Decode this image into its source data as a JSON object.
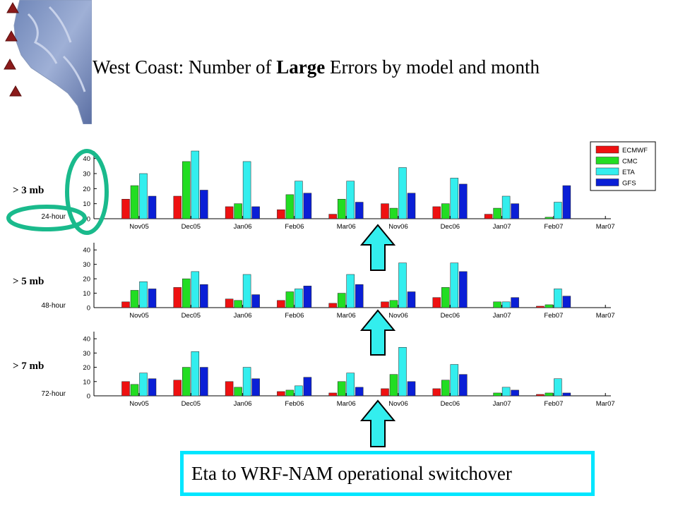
{
  "title": {
    "prefix": "West Coast: Number of ",
    "bold": "Large",
    "suffix": " Errors by model and month"
  },
  "callout": "Eta to WRF-NAM operational switchover",
  "colors": {
    "ECMWF": "#ee1111",
    "CMC": "#22dd22",
    "ETA": "#33eeee",
    "GFS": "#0a1fd6",
    "highlight": "#1aba8c",
    "arrow": "#33eeee"
  },
  "chart_data": [
    {
      "type": "bar",
      "threshold_label": "> 3 mb",
      "lead_label": "24-hour",
      "categories": [
        "Nov05",
        "Dec05",
        "Jan06",
        "Feb06",
        "Mar06",
        "Nov06",
        "Dec06",
        "Jan07",
        "Feb07",
        "Mar07"
      ],
      "ylim": [
        0,
        45
      ],
      "yticks": [
        "0",
        "10",
        "20",
        "30",
        "40"
      ],
      "legend": [
        "ECMWF",
        "CMC",
        "ETA",
        "GFS"
      ],
      "legend_position": "top-right",
      "series": [
        {
          "name": "ECMWF",
          "values": [
            13,
            15,
            8,
            6,
            3,
            10,
            8,
            3,
            0,
            null
          ]
        },
        {
          "name": "CMC",
          "values": [
            22,
            38,
            10,
            16,
            13,
            7,
            10,
            7,
            1,
            null
          ]
        },
        {
          "name": "ETA",
          "values": [
            30,
            45,
            38,
            25,
            25,
            34,
            27,
            15,
            11,
            null
          ]
        },
        {
          "name": "GFS",
          "values": [
            15,
            19,
            8,
            17,
            11,
            17,
            23,
            10,
            22,
            null
          ]
        }
      ]
    },
    {
      "type": "bar",
      "threshold_label": "> 5 mb",
      "lead_label": "48-hour",
      "categories": [
        "Nov05",
        "Dec05",
        "Jan06",
        "Feb06",
        "Mar06",
        "Nov06",
        "Dec06",
        "Jan07",
        "Feb07",
        "Mar07"
      ],
      "ylim": [
        0,
        45
      ],
      "yticks": [
        "0",
        "10",
        "20",
        "30",
        "40"
      ],
      "series": [
        {
          "name": "ECMWF",
          "values": [
            4,
            14,
            6,
            5,
            3,
            4,
            7,
            0,
            1,
            null
          ]
        },
        {
          "name": "CMC",
          "values": [
            12,
            20,
            5,
            11,
            10,
            5,
            14,
            4,
            2,
            null
          ]
        },
        {
          "name": "ETA",
          "values": [
            18,
            25,
            23,
            13,
            23,
            31,
            31,
            4,
            13,
            null
          ]
        },
        {
          "name": "GFS",
          "values": [
            13,
            16,
            9,
            15,
            16,
            11,
            25,
            7,
            8,
            null
          ]
        }
      ]
    },
    {
      "type": "bar",
      "threshold_label": "> 7 mb",
      "lead_label": "72-hour",
      "categories": [
        "Nov05",
        "Dec05",
        "Jan06",
        "Feb06",
        "Mar06",
        "Nov06",
        "Dec06",
        "Jan07",
        "Feb07",
        "Mar07"
      ],
      "ylim": [
        0,
        45
      ],
      "yticks": [
        "0",
        "10",
        "20",
        "30",
        "40"
      ],
      "series": [
        {
          "name": "ECMWF",
          "values": [
            10,
            11,
            10,
            3,
            2,
            5,
            5,
            0,
            1,
            null
          ]
        },
        {
          "name": "CMC",
          "values": [
            8,
            20,
            6,
            4,
            10,
            15,
            11,
            2,
            2,
            null
          ]
        },
        {
          "name": "ETA",
          "values": [
            16,
            31,
            20,
            7,
            16,
            34,
            22,
            6,
            12,
            null
          ]
        },
        {
          "name": "GFS",
          "values": [
            12,
            20,
            12,
            13,
            6,
            10,
            15,
            4,
            2,
            null
          ]
        }
      ]
    }
  ]
}
